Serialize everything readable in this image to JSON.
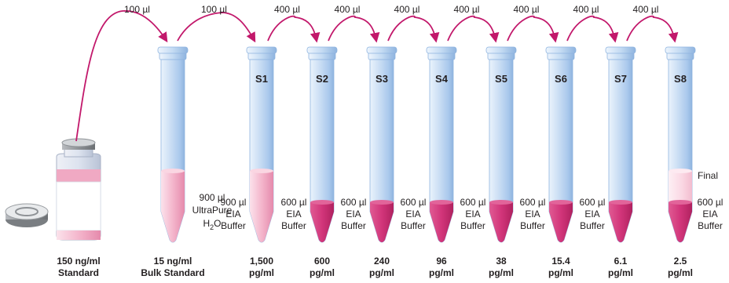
{
  "colors": {
    "tube_light": "#cfe1f5",
    "tube_mid": "#a9c8ec",
    "tube_dark": "#7fa9d8",
    "liquid_pink": "#f4b6cc",
    "liquid_magenta": "#d2357a",
    "liquid_light": "#fad6e2",
    "arrow": "#c2186b",
    "text": "#231f20"
  },
  "stock": {
    "concentration": "150 ng/ml",
    "name": "Standard"
  },
  "bulk": {
    "diluent_volume": "900 µl",
    "diluent_name": "UltraPure",
    "diluent_formula_base": "H",
    "diluent_formula_sub": "2",
    "diluent_formula_end": "O",
    "concentration": "15 ng/ml",
    "name": "Bulk Standard"
  },
  "transfers": [
    "100 µl",
    "100 µl",
    "400 µl",
    "400 µl",
    "400 µl",
    "400 µl",
    "400 µl",
    "400 µl",
    "400 µl"
  ],
  "tubes": [
    {
      "label": "S1",
      "buffer_volume": "900 µl",
      "buffer_name_1": "EIA",
      "buffer_name_2": "Buffer",
      "value": "1,500",
      "unit": "pg/ml"
    },
    {
      "label": "S2",
      "buffer_volume": "600 µl",
      "buffer_name_1": "EIA",
      "buffer_name_2": "Buffer",
      "value": "600",
      "unit": "pg/ml"
    },
    {
      "label": "S3",
      "buffer_volume": "600 µl",
      "buffer_name_1": "EIA",
      "buffer_name_2": "Buffer",
      "value": "240",
      "unit": "pg/ml"
    },
    {
      "label": "S4",
      "buffer_volume": "600 µl",
      "buffer_name_1": "EIA",
      "buffer_name_2": "Buffer",
      "value": "96",
      "unit": "pg/ml"
    },
    {
      "label": "S5",
      "buffer_volume": "600 µl",
      "buffer_name_1": "EIA",
      "buffer_name_2": "Buffer",
      "value": "38",
      "unit": "pg/ml"
    },
    {
      "label": "S6",
      "buffer_volume": "600 µl",
      "buffer_name_1": "EIA",
      "buffer_name_2": "Buffer",
      "value": "15.4",
      "unit": "pg/ml"
    },
    {
      "label": "S7",
      "buffer_volume": "600 µl",
      "buffer_name_1": "EIA",
      "buffer_name_2": "Buffer",
      "value": "6.1",
      "unit": "pg/ml"
    },
    {
      "label": "S8",
      "buffer_volume": "600 µl",
      "buffer_name_1": "EIA",
      "buffer_name_2": "Buffer",
      "value": "2.5",
      "unit": "pg/ml",
      "final_label": "Final"
    }
  ]
}
